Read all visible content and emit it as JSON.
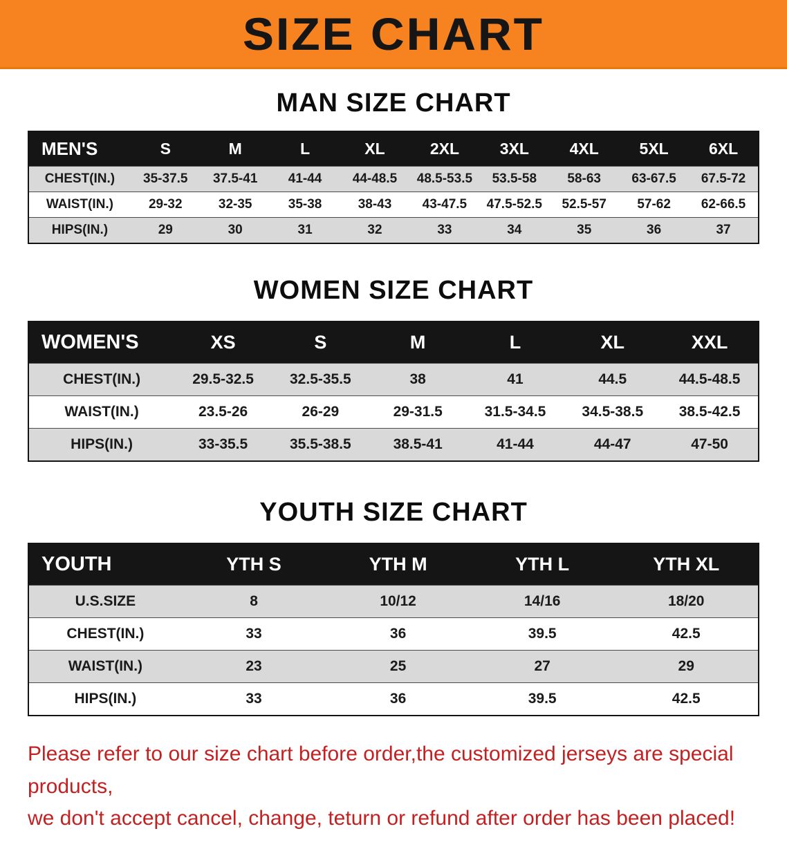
{
  "banner": {
    "title": "SIZE CHART"
  },
  "colors": {
    "banner_bg": "#f6831f",
    "table_header_bg": "#151515",
    "row_stripe_gray": "#d9d9d9",
    "footnote_red": "#c32121"
  },
  "sections": [
    {
      "heading": "MAN SIZE CHART",
      "table": {
        "header": [
          "MEN'S",
          "S",
          "M",
          "L",
          "XL",
          "2XL",
          "3XL",
          "4XL",
          "5XL",
          "6XL"
        ],
        "rows": [
          [
            "CHEST(IN.)",
            "35-37.5",
            "37.5-41",
            "41-44",
            "44-48.5",
            "48.5-53.5",
            "53.5-58",
            "58-63",
            "63-67.5",
            "67.5-72"
          ],
          [
            "WAIST(IN.)",
            "29-32",
            "32-35",
            "35-38",
            "38-43",
            "43-47.5",
            "47.5-52.5",
            "52.5-57",
            "57-62",
            "62-66.5"
          ],
          [
            "HIPS(IN.)",
            "29",
            "30",
            "31",
            "32",
            "33",
            "34",
            "35",
            "36",
            "37"
          ]
        ]
      }
    },
    {
      "heading": "WOMEN SIZE CHART",
      "table": {
        "header": [
          "WOMEN'S",
          "XS",
          "S",
          "M",
          "L",
          "XL",
          "XXL"
        ],
        "rows": [
          [
            "CHEST(IN.)",
            "29.5-32.5",
            "32.5-35.5",
            "38",
            "41",
            "44.5",
            "44.5-48.5"
          ],
          [
            "WAIST(IN.)",
            "23.5-26",
            "26-29",
            "29-31.5",
            "31.5-34.5",
            "34.5-38.5",
            "38.5-42.5"
          ],
          [
            "HIPS(IN.)",
            "33-35.5",
            "35.5-38.5",
            "38.5-41",
            "41-44",
            "44-47",
            "47-50"
          ]
        ]
      }
    },
    {
      "heading": "YOUTH SIZE CHART",
      "table": {
        "header": [
          "YOUTH",
          "YTH S",
          "YTH M",
          "YTH L",
          "YTH XL"
        ],
        "rows": [
          [
            "U.S.SIZE",
            "8",
            "10/12",
            "14/16",
            "18/20"
          ],
          [
            "CHEST(IN.)",
            "33",
            "36",
            "39.5",
            "42.5"
          ],
          [
            "WAIST(IN.)",
            "23",
            "25",
            "27",
            "29"
          ],
          [
            "HIPS(IN.)",
            "33",
            "36",
            "39.5",
            "42.5"
          ]
        ]
      }
    }
  ],
  "footnote": {
    "lines": [
      "Please refer to our size chart before order,the customized jerseys are special products,",
      "we don't accept cancel, change, teturn or refund after order has been placed!"
    ]
  }
}
